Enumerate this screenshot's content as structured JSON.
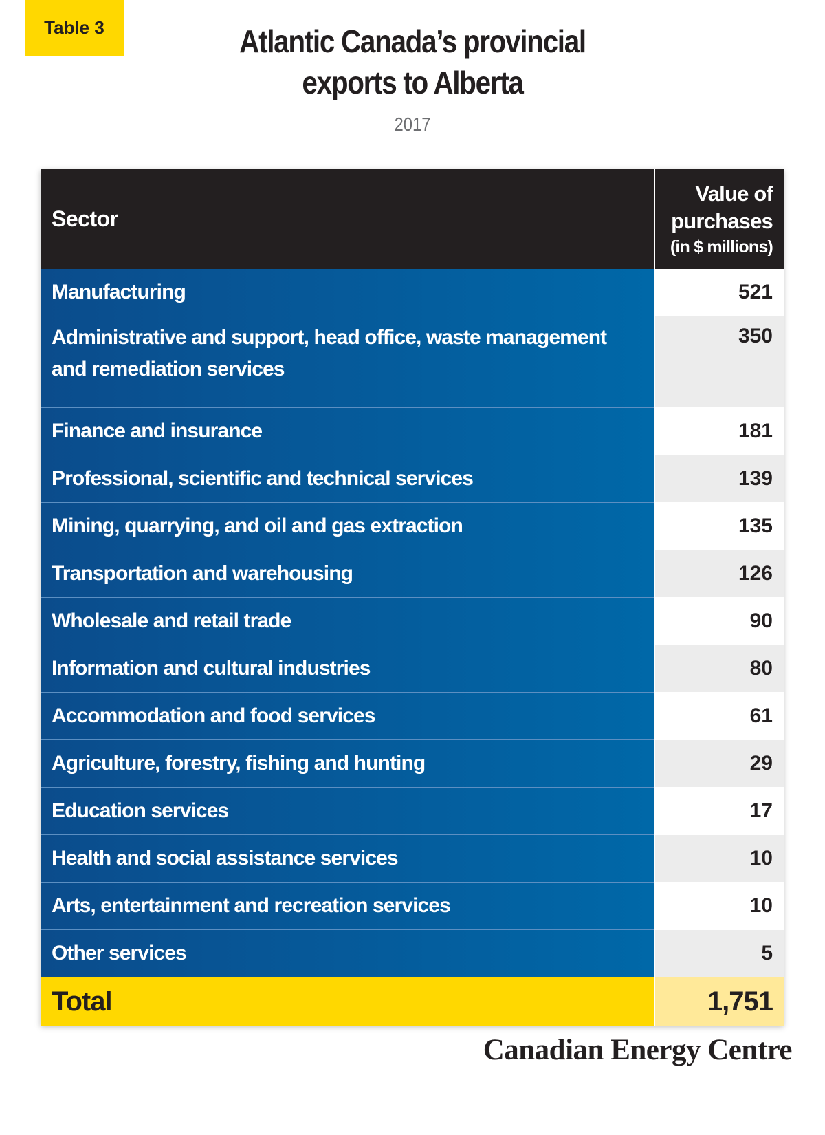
{
  "badge": "Table 3",
  "title": {
    "line1": "Atlantic Canada’s provincial",
    "line2": "exports to Alberta"
  },
  "subtitle": "2017",
  "table": {
    "headers": {
      "sector": "Sector",
      "value_line1": "Value of",
      "value_line2": "purchases",
      "value_unit": "(in $ millions)"
    },
    "rows": [
      {
        "sector": "Manufacturing",
        "value": "521"
      },
      {
        "sector": "Administrative and support, head office, waste management and remediation services",
        "value": "350"
      },
      {
        "sector": "Finance and insurance",
        "value": "181"
      },
      {
        "sector": "Professional, scientific and technical services",
        "value": "139"
      },
      {
        "sector": "Mining, quarrying, and oil and gas extraction",
        "value": "135"
      },
      {
        "sector": "Transportation and warehousing",
        "value": "126"
      },
      {
        "sector": "Wholesale and retail trade",
        "value": "90"
      },
      {
        "sector": "Information and cultural industries",
        "value": "80"
      },
      {
        "sector": "Accommodation and food services",
        "value": "61"
      },
      {
        "sector": "Agriculture, forestry, fishing and hunting",
        "value": "29"
      },
      {
        "sector": "Education services",
        "value": "17"
      },
      {
        "sector": "Health and social assistance services",
        "value": "10"
      },
      {
        "sector": "Arts, entertainment and recreation services",
        "value": "10"
      },
      {
        "sector": "Other services",
        "value": "5"
      }
    ],
    "total": {
      "label": "Total",
      "value": "1,751"
    }
  },
  "logo": "Canadian Energy Centre",
  "colors": {
    "accent_yellow": "#ffd800",
    "row_blue": "#0068a8",
    "header_dark": "#231f20"
  }
}
